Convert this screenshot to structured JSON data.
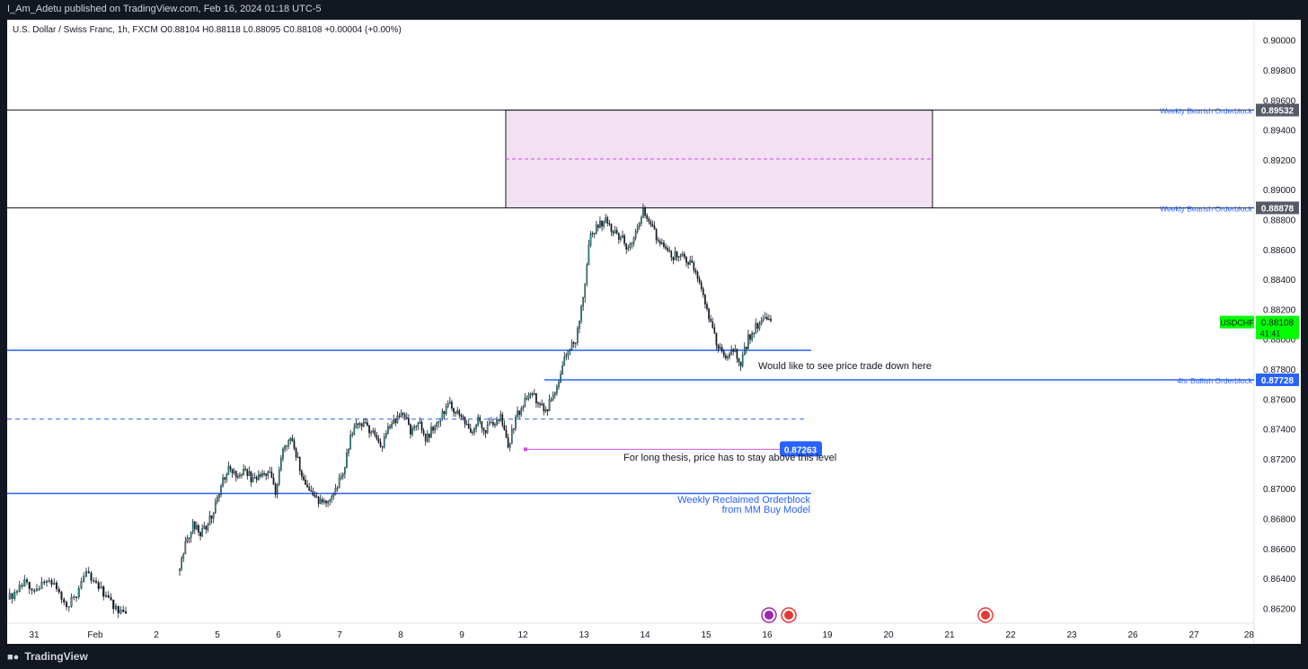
{
  "header": {
    "publish_text": "I_Am_Adetu published on TradingView.com, Feb 16, 2024 01:18 UTC-5"
  },
  "legend": {
    "text": "U.S. Dollar / Swiss Franc, 1h, FXCM  O0.88104  H0.88118  L0.88095  C0.88108  +0.00004 (+0.00%)"
  },
  "footer": {
    "brand": "TradingView",
    "logo_icon": "tradingview-logo-icon"
  },
  "colors": {
    "up": "#26a69a",
    "down": "#131722",
    "blue_line": "#2962ff",
    "zone_fill": "#f1e1f2",
    "magenta": "#d44fd8",
    "live_price": "#00ff00"
  },
  "chart_data": {
    "type": "candlestick",
    "symbol": "USDCHF",
    "timeframe": "1h",
    "y_axis": {
      "range": [
        0.861,
        0.901
      ],
      "ticks": [
        "0.90000",
        "0.89800",
        "0.89600",
        "0.89400",
        "0.89200",
        "0.89000",
        "0.88800",
        "0.88600",
        "0.88400",
        "0.88200",
        "0.88000",
        "0.87800",
        "0.87600",
        "0.87400",
        "0.87200",
        "0.87000",
        "0.86800",
        "0.86600",
        "0.86400",
        "0.86200"
      ]
    },
    "x_axis": {
      "ticks": [
        "31",
        "Feb",
        "2",
        "5",
        "6",
        "7",
        "8",
        "9",
        "12",
        "13",
        "14",
        "15",
        "16",
        "19",
        "20",
        "21",
        "22",
        "23",
        "26",
        "27",
        "28"
      ]
    },
    "price_path": [
      [
        0.8626,
        0.8632,
        0.8638,
        0.863,
        0.864,
        0.8633,
        0.8622,
        0.863,
        0.8643,
        0.8636,
        0.8627,
        0.8621,
        0.8614
      ],
      [
        0.8645,
        0.8662,
        0.8678,
        0.867,
        0.8676,
        0.869,
        0.8706,
        0.8714,
        0.8708,
        0.8712,
        0.8705,
        0.8708,
        0.8712,
        0.8697,
        0.8727,
        0.8735,
        0.8718,
        0.87,
        0.8694,
        0.869,
        0.8693,
        0.8698,
        0.8711,
        0.8733,
        0.8745,
        0.8742,
        0.8738,
        0.8727,
        0.874,
        0.8745,
        0.8751,
        0.8738,
        0.8745,
        0.8734,
        0.874,
        0.875,
        0.8756,
        0.8752,
        0.8748,
        0.8735,
        0.8747,
        0.874,
        0.8742,
        0.8748,
        0.8726,
        0.8748,
        0.8755,
        0.8765,
        0.8758,
        0.8752,
        0.8762,
        0.8775,
        0.8795,
        0.88,
        0.883,
        0.887,
        0.8876,
        0.888,
        0.8872,
        0.8868,
        0.8861,
        0.8872,
        0.8885,
        0.8877,
        0.8865,
        0.886,
        0.8855,
        0.8858,
        0.8852,
        0.8845,
        0.883,
        0.881,
        0.8795,
        0.8787,
        0.8793,
        0.8785,
        0.88,
        0.8808,
        0.8812,
        0.8811
      ]
    ],
    "levels": [
      {
        "name": "weekly-bearish-ob-top",
        "price": 0.89532,
        "label": "Weekly Bearish Orderblock",
        "price_label": "0.89532"
      },
      {
        "name": "weekly-bearish-ob-bottom",
        "price": 0.88878,
        "label": "Weekly Bearish Orderblock",
        "price_label": "0.88878"
      },
      {
        "name": "4hr-bullish-ob",
        "price": 0.87728,
        "label": "4hr Bullish Orderblock",
        "price_label": "0.87728"
      },
      {
        "name": "long-thesis-level",
        "price": 0.87263,
        "price_label": "0.87263"
      }
    ],
    "zone": {
      "top": 0.89532,
      "bottom": 0.88878,
      "mid": 0.89205
    },
    "annotations": [
      {
        "name": "trade-down-note",
        "text": "Would like to see price trade down here"
      },
      {
        "name": "long-thesis-note",
        "text": "For long thesis, price has to stay above this level"
      },
      {
        "name": "reclaimed-ob-note-1",
        "text": "Weekly Reclaimed Orderblock"
      },
      {
        "name": "reclaimed-ob-note-2",
        "text": "from MM Buy Model"
      }
    ],
    "live_price": {
      "symbol": "USDCHF",
      "price": "0.88108",
      "countdown": "41:41"
    },
    "event_icons": [
      "event-icon-1",
      "us-flag-icon",
      "us-flag-icon"
    ]
  }
}
